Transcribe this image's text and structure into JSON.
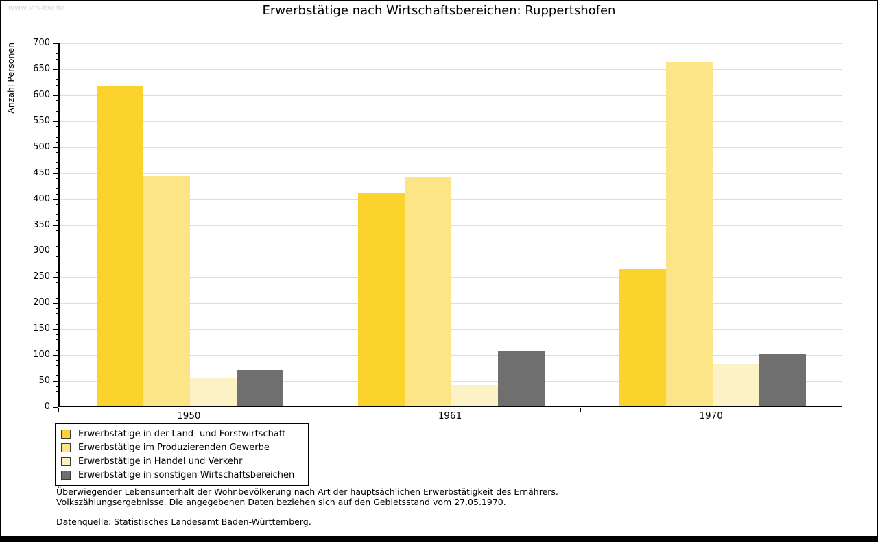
{
  "watermark": "www.leo-bw.de",
  "chart_data": {
    "type": "bar",
    "title": "Erwerbstätige nach Wirtschaftsbereichen: Ruppertshofen",
    "ylabel": "Anzahl Personen",
    "xlabel": "",
    "ylim": [
      0,
      700
    ],
    "ytick_step": 50,
    "minor_tick_step": 10,
    "grid": true,
    "legend_position": "bottom-left",
    "categories": [
      "1950",
      "1961",
      "1970"
    ],
    "series": [
      {
        "name": "Erwerbstätige in der Land- und Forstwirtschaft",
        "color": "#FCD32D",
        "values": [
          616,
          410,
          262
        ]
      },
      {
        "name": "Erwerbstätige im Produzierenden Gewerbe",
        "color": "#FCE586",
        "values": [
          441,
          440,
          661
        ]
      },
      {
        "name": "Erwerbstätige in Handel und Verkehr",
        "color": "#FBF2C6",
        "values": [
          54,
          40,
          80
        ]
      },
      {
        "name": "Erwerbstätige in sonstigen Wirtschaftsbereichen",
        "color": "#6F6F6F",
        "values": [
          69,
          106,
          100
        ]
      }
    ]
  },
  "footnotes": {
    "line1": "Überwiegender Lebensunterhalt der Wohnbevölkerung nach Art der hauptsächlichen Erwerbstätigkeit des Ernährers.",
    "line2": "Volkszählungsergebnisse. Die angegebenen Daten beziehen sich auf den Gebietsstand vom 27.05.1970.",
    "source": "Datenquelle: Statistisches Landesamt Baden-Württemberg."
  }
}
